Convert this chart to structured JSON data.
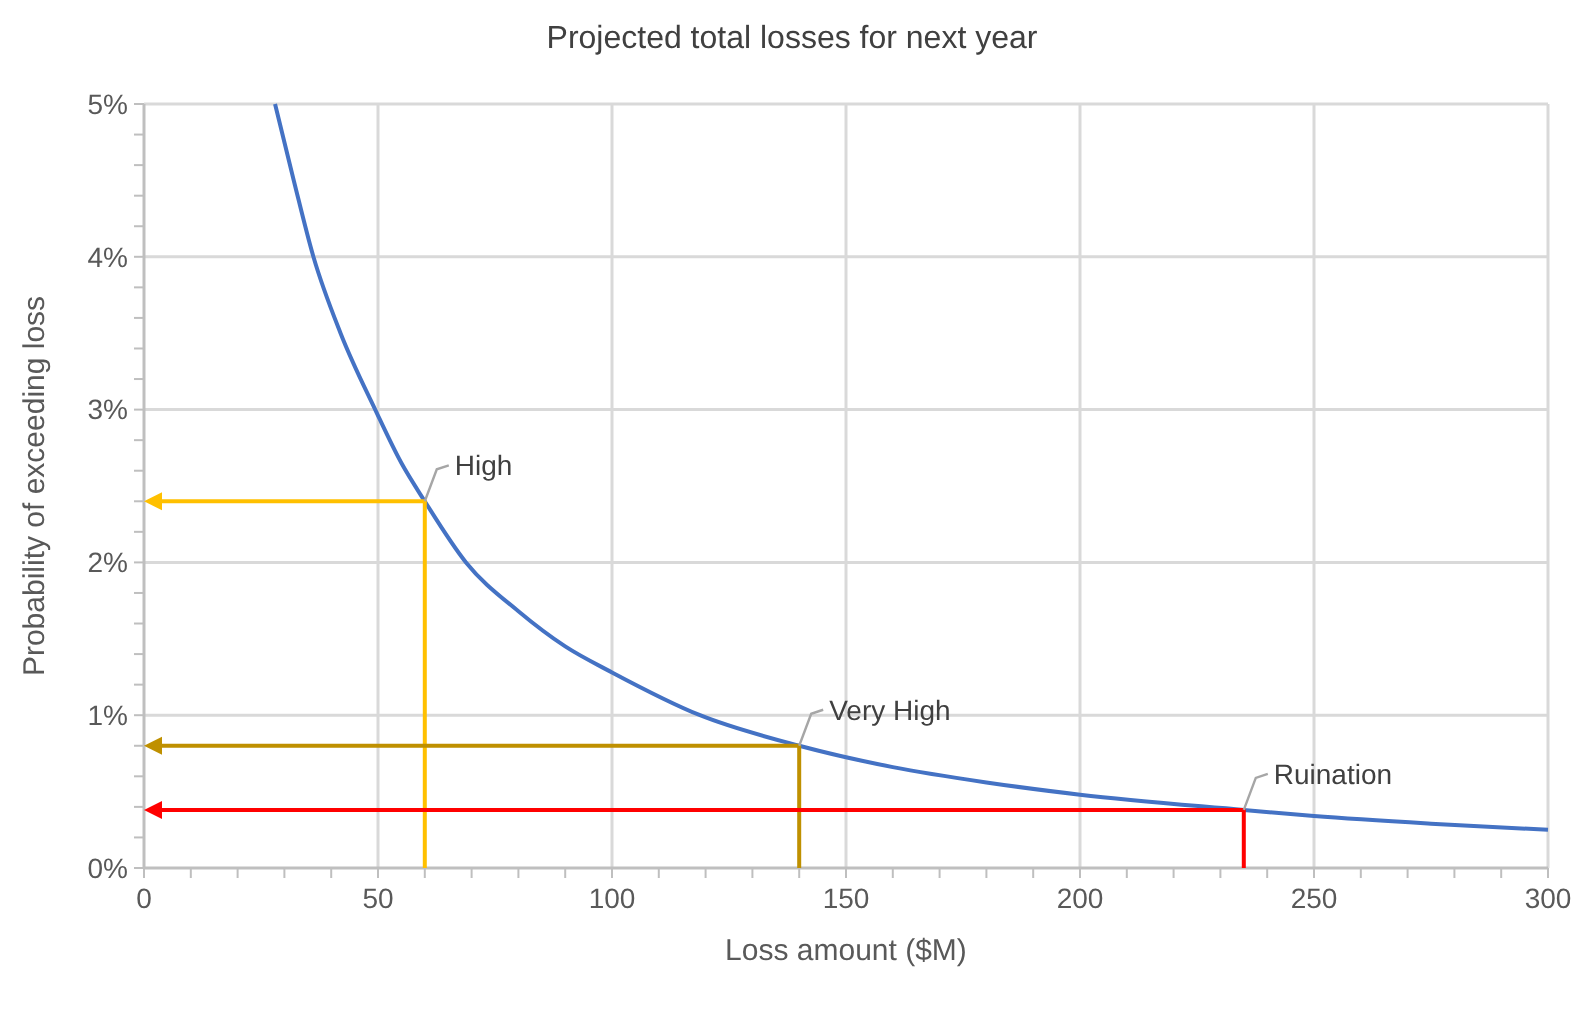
{
  "chart_data": {
    "type": "line",
    "title": "Projected total losses for next year",
    "xlabel": "Loss amount ($M)",
    "ylabel": "Probability of exceeding loss",
    "xlim": [
      0,
      300
    ],
    "ylim": [
      0,
      5
    ],
    "xticks": [
      0,
      {
        "value": 10,
        "label": null
      },
      {
        "value": 20,
        "label": null
      },
      {
        "value": 30,
        "label": null
      },
      {
        "value": 40,
        "label": null
      },
      50,
      {
        "value": 60,
        "label": null
      },
      {
        "value": 70,
        "label": null
      },
      {
        "value": 80,
        "label": null
      },
      {
        "value": 90,
        "label": null
      },
      100,
      {
        "value": 110,
        "label": null
      },
      {
        "value": 120,
        "label": null
      },
      {
        "value": 130,
        "label": null
      },
      {
        "value": 140,
        "label": null
      },
      150,
      {
        "value": 160,
        "label": null
      },
      {
        "value": 170,
        "label": null
      },
      {
        "value": 180,
        "label": null
      },
      {
        "value": 190,
        "label": null
      },
      200,
      {
        "value": 210,
        "label": null
      },
      {
        "value": 220,
        "label": null
      },
      {
        "value": 230,
        "label": null
      },
      {
        "value": 240,
        "label": null
      },
      250,
      {
        "value": 260,
        "label": null
      },
      {
        "value": 270,
        "label": null
      },
      {
        "value": 280,
        "label": null
      },
      {
        "value": 290,
        "label": null
      },
      300
    ],
    "yticks": [
      {
        "value": 0,
        "label": "0%"
      },
      {
        "value": 0.2,
        "label": null
      },
      {
        "value": 0.4,
        "label": null
      },
      {
        "value": 0.6,
        "label": null
      },
      {
        "value": 0.8,
        "label": null
      },
      {
        "value": 1,
        "label": "1%"
      },
      {
        "value": 1.2,
        "label": null
      },
      {
        "value": 1.4,
        "label": null
      },
      {
        "value": 1.6,
        "label": null
      },
      {
        "value": 1.8,
        "label": null
      },
      {
        "value": 2,
        "label": "2%"
      },
      {
        "value": 2.2,
        "label": null
      },
      {
        "value": 2.4,
        "label": null
      },
      {
        "value": 2.6,
        "label": null
      },
      {
        "value": 2.8,
        "label": null
      },
      {
        "value": 3,
        "label": "3%"
      },
      {
        "value": 3.2,
        "label": null
      },
      {
        "value": 3.4,
        "label": null
      },
      {
        "value": 3.6,
        "label": null
      },
      {
        "value": 3.8,
        "label": null
      },
      {
        "value": 4,
        "label": "4%"
      },
      {
        "value": 4.2,
        "label": null
      },
      {
        "value": 4.4,
        "label": null
      },
      {
        "value": 4.6,
        "label": null
      },
      {
        "value": 4.8,
        "label": null
      },
      {
        "value": 5,
        "label": "5%"
      }
    ],
    "grid": true,
    "series": [
      {
        "color": "#4472c4",
        "x": [
          28,
          32,
          36.2,
          42,
          49.4,
          55,
          60,
          68.8,
          80,
          90,
          100,
          118.8,
          140,
          160,
          180,
          200,
          235,
          250,
          275,
          300
        ],
        "values": [
          5,
          4.5,
          4,
          3.5,
          3,
          2.65,
          2.4,
          2,
          1.68,
          1.45,
          1.28,
          1,
          0.8,
          0.66,
          0.56,
          0.48,
          0.38,
          0.34,
          0.29,
          0.25
        ]
      }
    ],
    "annotations": [
      {
        "text": "High",
        "x": 60,
        "y": 2.4
      },
      {
        "text": "Very High",
        "x": 140,
        "y": 0.8
      },
      {
        "text": "Ruination",
        "x": 235,
        "y": 0.38
      }
    ]
  }
}
